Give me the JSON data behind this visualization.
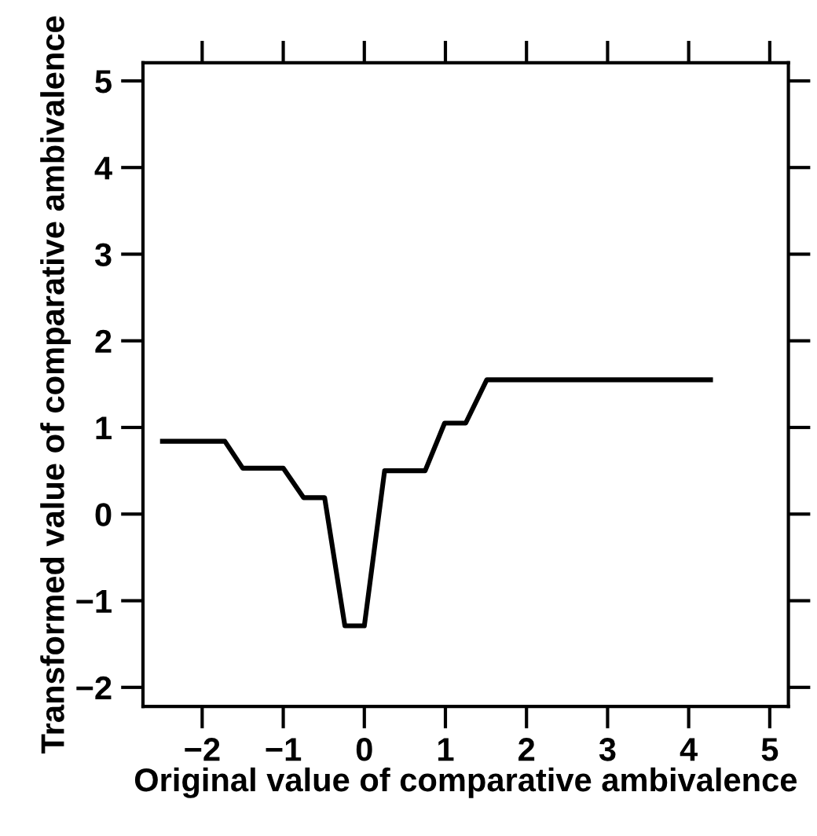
{
  "chart_data": {
    "type": "line",
    "xlabel": "Original value of comparative ambivalence",
    "ylabel": "Transformed value of comparative ambivalence",
    "x": [
      -2.49,
      -1.72,
      -1.5,
      -1.0,
      -0.75,
      -0.49,
      -0.24,
      0,
      0.25,
      0.75,
      0.99,
      1.25,
      1.51,
      4.27
    ],
    "series": [
      {
        "color": "#000000",
        "values": [
          0.84,
          0.84,
          0.53,
          0.53,
          0.19,
          0.19,
          -1.29,
          -1.29,
          0.5,
          0.5,
          1.05,
          1.05,
          1.55,
          1.55
        ]
      }
    ],
    "xlim": [
      -2.73,
      5.23
    ],
    "ylim": [
      -2.22,
      5.21
    ],
    "xticks": [
      -2,
      -1,
      0,
      1,
      2,
      3,
      4,
      5
    ],
    "yticks": [
      -2,
      -1,
      0,
      1,
      2,
      3,
      4,
      5
    ],
    "grid": false,
    "legend": false,
    "marker": "none",
    "line_style": "solid"
  }
}
